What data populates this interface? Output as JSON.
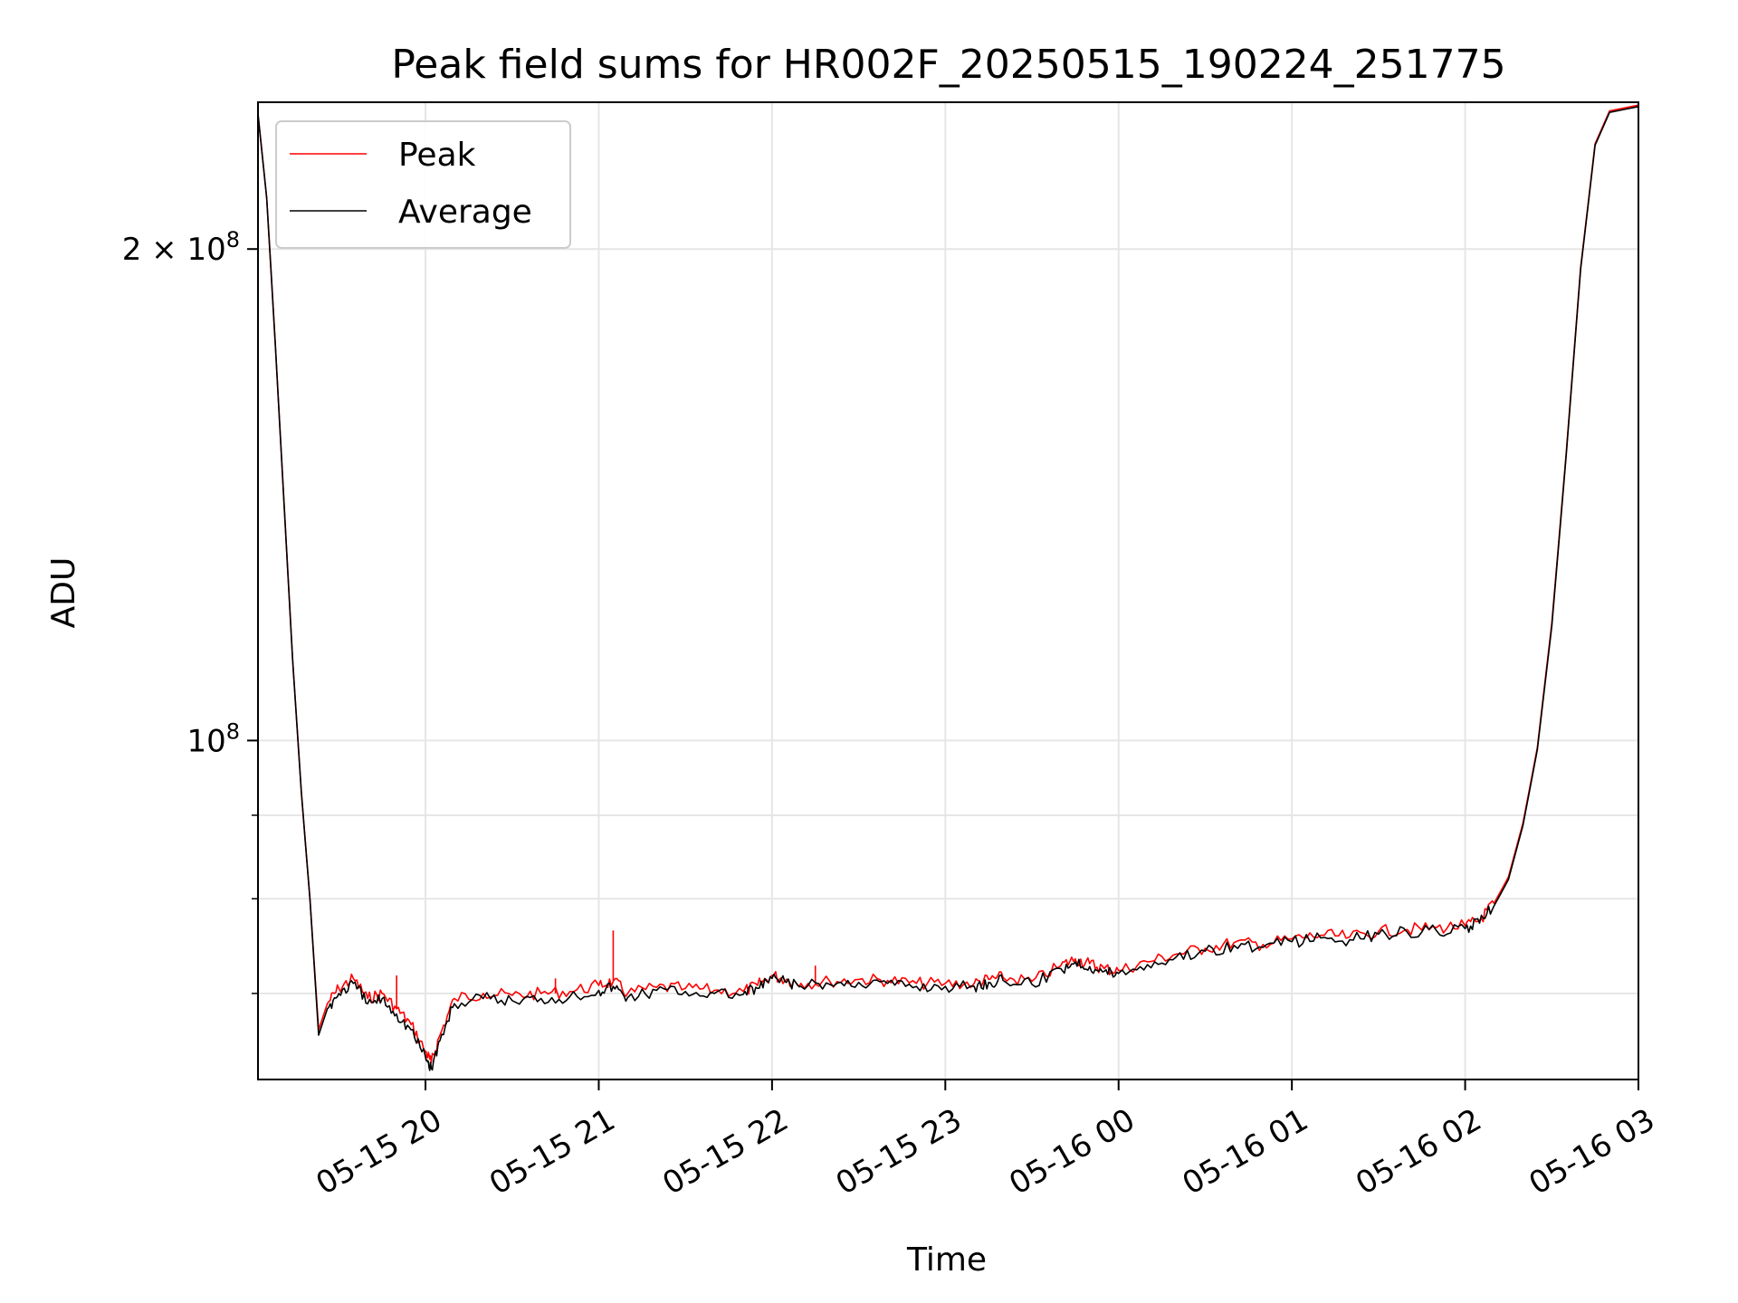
{
  "chart_data": {
    "type": "line",
    "title": "Peak field sums for HR002F_20250515_190224_251775",
    "xlabel": "Time",
    "ylabel": "ADU",
    "yscale": "log",
    "xlim": [
      "2025-05-15 19:02",
      "2025-05-16 03:00"
    ],
    "ylim": [
      62000000,
      246000000
    ],
    "grid": true,
    "legend_position": "top-left",
    "x_ticks": [
      {
        "value": "2025-05-15 20:00",
        "label": "05-15 20"
      },
      {
        "value": "2025-05-15 21:00",
        "label": "05-15 21"
      },
      {
        "value": "2025-05-15 22:00",
        "label": "05-15 22"
      },
      {
        "value": "2025-05-15 23:00",
        "label": "05-15 23"
      },
      {
        "value": "2025-05-16 00:00",
        "label": "05-16 00"
      },
      {
        "value": "2025-05-16 01:00",
        "label": "05-16 01"
      },
      {
        "value": "2025-05-16 02:00",
        "label": "05-16 02"
      },
      {
        "value": "2025-05-16 03:00",
        "label": "05-16 03"
      }
    ],
    "y_ticks": [
      {
        "value": 100000000,
        "label_base": "10",
        "label_exp": "8"
      },
      {
        "value": 200000000,
        "label_base": "2 × 10",
        "label_exp": "8"
      }
    ],
    "y_minor_ticks": [
      70000000,
      80000000,
      90000000
    ],
    "series": [
      {
        "name": "Peak",
        "color": "#ff0000",
        "points": [
          [
            "2025-05-15 19:02",
            242000000
          ],
          [
            "2025-05-15 19:05",
            215000000
          ],
          [
            "2025-05-15 19:08",
            175000000
          ],
          [
            "2025-05-15 19:11",
            140000000
          ],
          [
            "2025-05-15 19:14",
            112000000
          ],
          [
            "2025-05-15 19:17",
            93000000
          ],
          [
            "2025-05-15 19:20",
            80000000
          ],
          [
            "2025-05-15 19:23",
            66500000
          ],
          [
            "2025-05-15 19:26",
            69000000
          ],
          [
            "2025-05-15 19:30",
            70500000
          ],
          [
            "2025-05-15 19:35",
            71500000
          ],
          [
            "2025-05-15 19:40",
            69500000
          ],
          [
            "2025-05-15 19:45",
            70000000
          ],
          [
            "2025-05-15 19:50",
            68500000
          ],
          [
            "2025-05-15 19:55",
            67000000
          ],
          [
            "2025-05-15 20:00",
            64500000
          ],
          [
            "2025-05-15 20:02",
            63500000
          ],
          [
            "2025-05-15 20:05",
            66000000
          ],
          [
            "2025-05-15 20:10",
            69500000
          ],
          [
            "2025-05-15 20:20",
            70000000
          ],
          [
            "2025-05-15 20:30",
            69800000
          ],
          [
            "2025-05-15 20:40",
            70000000
          ],
          [
            "2025-05-15 20:50",
            70200000
          ],
          [
            "2025-05-15 21:00",
            70800000
          ],
          [
            "2025-05-15 21:05",
            71200000
          ],
          [
            "2025-05-15 21:10",
            70000000
          ],
          [
            "2025-05-15 21:20",
            70600000
          ],
          [
            "2025-05-15 21:30",
            70500000
          ],
          [
            "2025-05-15 21:40",
            70300000
          ],
          [
            "2025-05-15 21:50",
            70200000
          ],
          [
            "2025-05-15 21:55",
            70800000
          ],
          [
            "2025-05-15 22:00",
            71800000
          ],
          [
            "2025-05-15 22:05",
            71400000
          ],
          [
            "2025-05-15 22:10",
            71000000
          ],
          [
            "2025-05-15 22:20",
            71200000
          ],
          [
            "2025-05-15 22:30",
            71400000
          ],
          [
            "2025-05-15 22:40",
            71300000
          ],
          [
            "2025-05-15 22:50",
            71000000
          ],
          [
            "2025-05-15 23:00",
            71000000
          ],
          [
            "2025-05-15 23:10",
            71000000
          ],
          [
            "2025-05-15 23:15",
            71400000
          ],
          [
            "2025-05-15 23:20",
            71600000
          ],
          [
            "2025-05-15 23:30",
            71200000
          ],
          [
            "2025-05-15 23:40",
            72800000
          ],
          [
            "2025-05-15 23:45",
            73500000
          ],
          [
            "2025-05-15 23:50",
            73000000
          ],
          [
            "2025-05-15 23:55",
            72500000
          ],
          [
            "2025-05-16 00:00",
            72300000
          ],
          [
            "2025-05-16 00:10",
            73200000
          ],
          [
            "2025-05-16 00:20",
            74000000
          ],
          [
            "2025-05-16 00:30",
            74600000
          ],
          [
            "2025-05-16 00:40",
            75200000
          ],
          [
            "2025-05-16 00:50",
            75000000
          ],
          [
            "2025-05-16 01:00",
            75600000
          ],
          [
            "2025-05-16 01:10",
            76000000
          ],
          [
            "2025-05-16 01:20",
            75800000
          ],
          [
            "2025-05-16 01:30",
            76400000
          ],
          [
            "2025-05-16 01:40",
            76600000
          ],
          [
            "2025-05-16 01:50",
            76800000
          ],
          [
            "2025-05-16 02:00",
            77000000
          ],
          [
            "2025-05-16 02:05",
            77600000
          ],
          [
            "2025-05-16 02:10",
            79500000
          ],
          [
            "2025-05-16 02:15",
            82500000
          ],
          [
            "2025-05-16 02:20",
            89000000
          ],
          [
            "2025-05-16 02:25",
            99000000
          ],
          [
            "2025-05-16 02:30",
            118000000
          ],
          [
            "2025-05-16 02:35",
            150000000
          ],
          [
            "2025-05-16 02:40",
            195000000
          ],
          [
            "2025-05-16 02:45",
            232000000
          ],
          [
            "2025-05-16 02:50",
            243000000
          ],
          [
            "2025-05-16 03:00",
            245000000
          ]
        ],
        "spikes": [
          [
            "2025-05-15 21:05",
            76500000
          ],
          [
            "2025-05-15 22:15",
            72800000
          ],
          [
            "2025-05-15 19:50",
            71800000
          ],
          [
            "2025-05-15 20:45",
            71500000
          ]
        ]
      },
      {
        "name": "Average",
        "color": "#000000",
        "points": [
          [
            "2025-05-15 19:02",
            242000000
          ],
          [
            "2025-05-15 19:05",
            215000000
          ],
          [
            "2025-05-15 19:08",
            175000000
          ],
          [
            "2025-05-15 19:11",
            140000000
          ],
          [
            "2025-05-15 19:14",
            112000000
          ],
          [
            "2025-05-15 19:17",
            93000000
          ],
          [
            "2025-05-15 19:20",
            80000000
          ],
          [
            "2025-05-15 19:23",
            66000000
          ],
          [
            "2025-05-15 19:26",
            68500000
          ],
          [
            "2025-05-15 19:30",
            70000000
          ],
          [
            "2025-05-15 19:35",
            71000000
          ],
          [
            "2025-05-15 19:40",
            69000000
          ],
          [
            "2025-05-15 19:45",
            69500000
          ],
          [
            "2025-05-15 19:50",
            68000000
          ],
          [
            "2025-05-15 19:55",
            66500000
          ],
          [
            "2025-05-15 20:00",
            64000000
          ],
          [
            "2025-05-15 20:02",
            63000000
          ],
          [
            "2025-05-15 20:05",
            65500000
          ],
          [
            "2025-05-15 20:10",
            69000000
          ],
          [
            "2025-05-15 20:20",
            69500000
          ],
          [
            "2025-05-15 20:30",
            69300000
          ],
          [
            "2025-05-15 20:40",
            69500000
          ],
          [
            "2025-05-15 20:50",
            69700000
          ],
          [
            "2025-05-15 21:00",
            70300000
          ],
          [
            "2025-05-15 21:05",
            70700000
          ],
          [
            "2025-05-15 21:10",
            69600000
          ],
          [
            "2025-05-15 21:20",
            70300000
          ],
          [
            "2025-05-15 21:30",
            70200000
          ],
          [
            "2025-05-15 21:40",
            70000000
          ],
          [
            "2025-05-15 21:50",
            69900000
          ],
          [
            "2025-05-15 21:55",
            70500000
          ],
          [
            "2025-05-15 22:00",
            71500000
          ],
          [
            "2025-05-15 22:05",
            71100000
          ],
          [
            "2025-05-15 22:10",
            70700000
          ],
          [
            "2025-05-15 22:20",
            70900000
          ],
          [
            "2025-05-15 22:30",
            71100000
          ],
          [
            "2025-05-15 22:40",
            71000000
          ],
          [
            "2025-05-15 22:50",
            70700000
          ],
          [
            "2025-05-15 23:00",
            70700000
          ],
          [
            "2025-05-15 23:10",
            70700000
          ],
          [
            "2025-05-15 23:15",
            71100000
          ],
          [
            "2025-05-15 23:20",
            71300000
          ],
          [
            "2025-05-15 23:30",
            70900000
          ],
          [
            "2025-05-15 23:40",
            72500000
          ],
          [
            "2025-05-15 23:45",
            73200000
          ],
          [
            "2025-05-15 23:50",
            72700000
          ],
          [
            "2025-05-15 23:55",
            72200000
          ],
          [
            "2025-05-16 00:00",
            72000000
          ],
          [
            "2025-05-16 00:10",
            72900000
          ],
          [
            "2025-05-16 00:20",
            73700000
          ],
          [
            "2025-05-16 00:30",
            74300000
          ],
          [
            "2025-05-16 00:40",
            74900000
          ],
          [
            "2025-05-16 00:50",
            74700000
          ],
          [
            "2025-05-16 01:00",
            75300000
          ],
          [
            "2025-05-16 01:10",
            75700000
          ],
          [
            "2025-05-16 01:20",
            75500000
          ],
          [
            "2025-05-16 01:30",
            76100000
          ],
          [
            "2025-05-16 01:40",
            76300000
          ],
          [
            "2025-05-16 01:50",
            76500000
          ],
          [
            "2025-05-16 02:00",
            76700000
          ],
          [
            "2025-05-16 02:05",
            77300000
          ],
          [
            "2025-05-16 02:10",
            79200000
          ],
          [
            "2025-05-16 02:15",
            82200000
          ],
          [
            "2025-05-16 02:20",
            88700000
          ],
          [
            "2025-05-16 02:25",
            98700000
          ],
          [
            "2025-05-16 02:30",
            117500000
          ],
          [
            "2025-05-16 02:35",
            149500000
          ],
          [
            "2025-05-16 02:40",
            194500000
          ],
          [
            "2025-05-16 02:45",
            231500000
          ],
          [
            "2025-05-16 02:50",
            242500000
          ],
          [
            "2025-05-16 03:00",
            244500000
          ]
        ]
      }
    ]
  }
}
